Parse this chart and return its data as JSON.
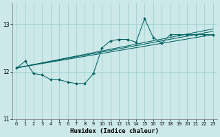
{
  "xlabel": "Humidex (Indice chaleur)",
  "bg_color": "#cce8e8",
  "line_color": "#006060",
  "grid_color": "#99cccc",
  "xlim": [
    -0.5,
    23.5
  ],
  "ylim": [
    11.0,
    13.45
  ],
  "yticks": [
    11,
    12,
    13
  ],
  "xticks": [
    0,
    1,
    2,
    3,
    4,
    5,
    6,
    7,
    8,
    9,
    10,
    11,
    12,
    13,
    14,
    15,
    16,
    17,
    18,
    19,
    20,
    21,
    22,
    23
  ],
  "series0_x": [
    0,
    1,
    2,
    3,
    4,
    5,
    6,
    7,
    8,
    9,
    10,
    11,
    12,
    13,
    14,
    15,
    16,
    17,
    18,
    19,
    20,
    21,
    22,
    23
  ],
  "series0_y": [
    12.08,
    12.22,
    11.96,
    11.93,
    11.83,
    11.83,
    11.78,
    11.75,
    11.75,
    11.96,
    12.5,
    12.65,
    12.68,
    12.68,
    12.62,
    13.12,
    12.72,
    12.6,
    12.78,
    12.78,
    12.78,
    12.78,
    12.78,
    12.78
  ],
  "series0_marker_x": [
    0,
    1,
    2,
    3,
    4,
    5,
    6,
    7,
    8,
    9,
    10,
    11,
    12,
    13,
    14,
    15,
    16,
    17,
    18,
    19,
    20,
    21,
    22,
    23
  ],
  "line1_x": [
    0,
    23
  ],
  "line1_y": [
    12.08,
    12.78
  ],
  "line2_x": [
    0,
    23
  ],
  "line2_y": [
    12.08,
    12.85
  ],
  "line3_x": [
    0,
    23
  ],
  "line3_y": [
    12.08,
    12.9
  ]
}
